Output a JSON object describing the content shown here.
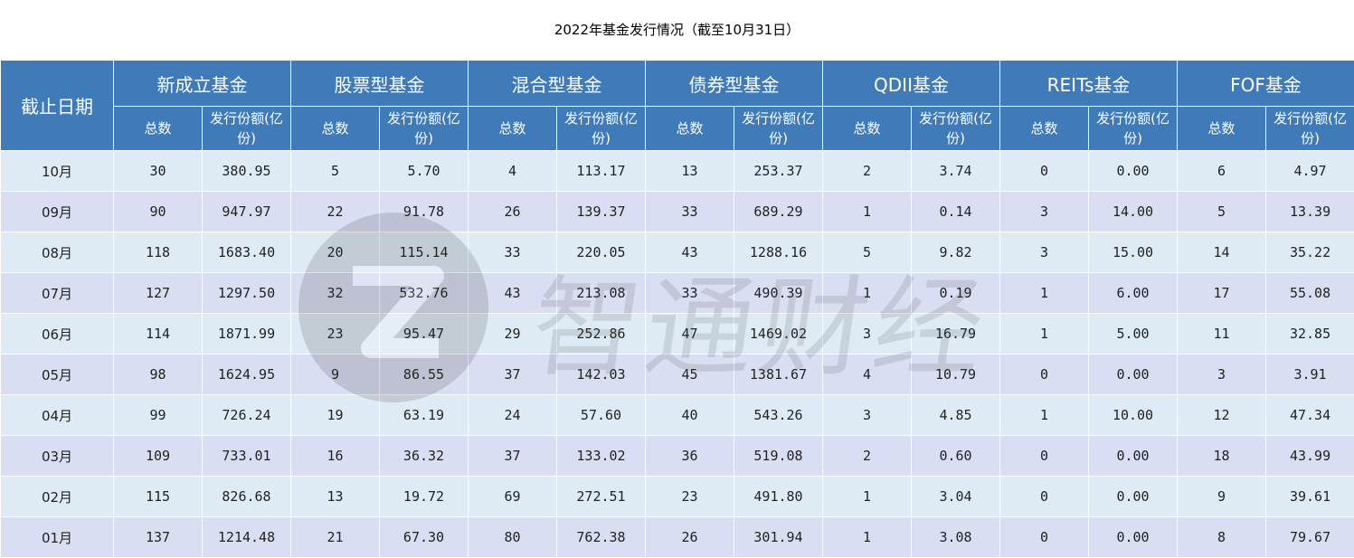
{
  "title": "2022年基金发行情况（截至10月31日）",
  "header": {
    "date_col": "截止日期",
    "groups": [
      "新成立基金",
      "股票型基金",
      "混合型基金",
      "债券型基金",
      "QDII基金",
      "REITs基金",
      "FOF基金"
    ],
    "sub_count": "总数",
    "sub_amount": "发行份额(亿份)"
  },
  "rows": [
    {
      "date": "10月",
      "v": [
        "30",
        "380.95",
        "5",
        "5.70",
        "4",
        "113.17",
        "13",
        "253.37",
        "2",
        "3.74",
        "0",
        "0.00",
        "6",
        "4.97"
      ]
    },
    {
      "date": "09月",
      "v": [
        "90",
        "947.97",
        "22",
        "91.78",
        "26",
        "139.37",
        "33",
        "689.29",
        "1",
        "0.14",
        "3",
        "14.00",
        "5",
        "13.39"
      ]
    },
    {
      "date": "08月",
      "v": [
        "118",
        "1683.40",
        "20",
        "115.14",
        "33",
        "220.05",
        "43",
        "1288.16",
        "5",
        "9.82",
        "3",
        "15.00",
        "14",
        "35.22"
      ]
    },
    {
      "date": "07月",
      "v": [
        "127",
        "1297.50",
        "32",
        "532.76",
        "43",
        "213.08",
        "33",
        "490.39",
        "1",
        "0.19",
        "1",
        "6.00",
        "17",
        "55.08"
      ]
    },
    {
      "date": "06月",
      "v": [
        "114",
        "1871.99",
        "23",
        "95.47",
        "29",
        "252.86",
        "47",
        "1469.02",
        "3",
        "16.79",
        "1",
        "5.00",
        "11",
        "32.85"
      ]
    },
    {
      "date": "05月",
      "v": [
        "98",
        "1624.95",
        "9",
        "86.55",
        "37",
        "142.03",
        "45",
        "1381.67",
        "4",
        "10.79",
        "0",
        "0.00",
        "3",
        "3.91"
      ]
    },
    {
      "date": "04月",
      "v": [
        "99",
        "726.24",
        "19",
        "63.19",
        "24",
        "57.60",
        "40",
        "543.26",
        "3",
        "4.85",
        "1",
        "10.00",
        "12",
        "47.34"
      ]
    },
    {
      "date": "03月",
      "v": [
        "109",
        "733.01",
        "16",
        "36.32",
        "37",
        "133.02",
        "36",
        "519.08",
        "2",
        "0.60",
        "0",
        "0.00",
        "18",
        "43.99"
      ]
    },
    {
      "date": "02月",
      "v": [
        "115",
        "826.68",
        "13",
        "19.72",
        "69",
        "272.51",
        "23",
        "491.80",
        "1",
        "3.04",
        "0",
        "0.00",
        "9",
        "39.61"
      ]
    },
    {
      "date": "01月",
      "v": [
        "137",
        "1214.48",
        "21",
        "67.30",
        "80",
        "762.38",
        "26",
        "301.94",
        "1",
        "3.08",
        "0",
        "0.00",
        "8",
        "79.67"
      ]
    }
  ],
  "watermark": {
    "text": "智通财经",
    "icon": "zhitong-logo-icon"
  }
}
